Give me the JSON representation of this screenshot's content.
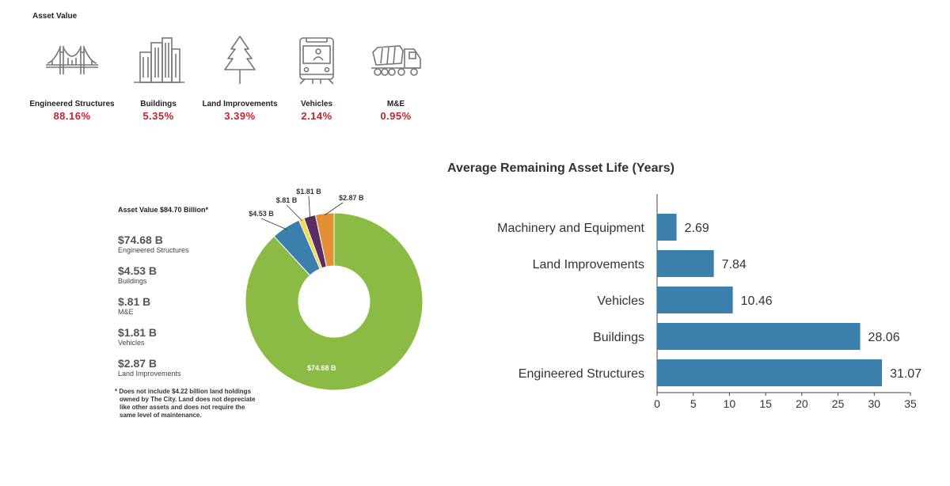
{
  "header": {
    "title": "Asset Value"
  },
  "categories": [
    {
      "icon": "bridge-icon",
      "label": "Engineered Structures",
      "percent": "88.16%"
    },
    {
      "icon": "buildings-icon",
      "label": "Buildings",
      "percent": "5.35%"
    },
    {
      "icon": "tree-icon",
      "label": "Land Improvements",
      "percent": "3.39%"
    },
    {
      "icon": "train-icon",
      "label": "Vehicles",
      "percent": "2.14%"
    },
    {
      "icon": "cement-truck-icon",
      "label": "M&E",
      "percent": "0.95%"
    }
  ],
  "donut": {
    "title": "Asset Value $84.70 Billion*",
    "legend": [
      {
        "value": "$74.68 B",
        "name": "Engineered Structures"
      },
      {
        "value": "$4.53 B",
        "name": "Buildings"
      },
      {
        "value": "$.81 B",
        "name": "M&E"
      },
      {
        "value": "$1.81 B",
        "name": "Vehicles"
      },
      {
        "value": "$2.87 B",
        "name": "Land Improvements"
      }
    ],
    "footnote_line1": "* Does not include $4.22 billion land holdings",
    "footnote_line2": "owned by The City. Land does not depreciate",
    "footnote_line3": "like other assets and does not require the",
    "footnote_line4": "same level of maintenance."
  },
  "chart_data": [
    {
      "type": "pie",
      "title": "Asset Value $84.70 Billion*",
      "labels": [
        "Engineered Structures",
        "Buildings",
        "M&E",
        "Vehicles",
        "Land Improvements"
      ],
      "values": [
        74.68,
        4.53,
        0.81,
        1.81,
        2.87
      ],
      "data_labels": [
        "$74.68 B",
        "$4.53 B",
        "$.81 B",
        "$1.81 B",
        "$2.87 B"
      ],
      "colors": [
        "#8cbb45",
        "#3b7fad",
        "#f2d94a",
        "#5b2d62",
        "#e38f36"
      ],
      "hole": "donut"
    },
    {
      "type": "bar",
      "orientation": "horizontal",
      "title": "Average Remaining Asset Life (Years)",
      "categories": [
        "Machinery and Equipment",
        "Land Improvements",
        "Vehicles",
        "Buildings",
        "Engineered Structures"
      ],
      "values": [
        2.69,
        7.84,
        10.46,
        28.06,
        31.07
      ],
      "value_labels": [
        "2.69",
        "7.84",
        "10.46",
        "28.06",
        "31.07"
      ],
      "xlim": [
        0,
        35
      ],
      "xticks": [
        "0",
        "5",
        "10",
        "15",
        "20",
        "25",
        "30",
        "35"
      ],
      "bar_color": "#3b7fad"
    }
  ]
}
